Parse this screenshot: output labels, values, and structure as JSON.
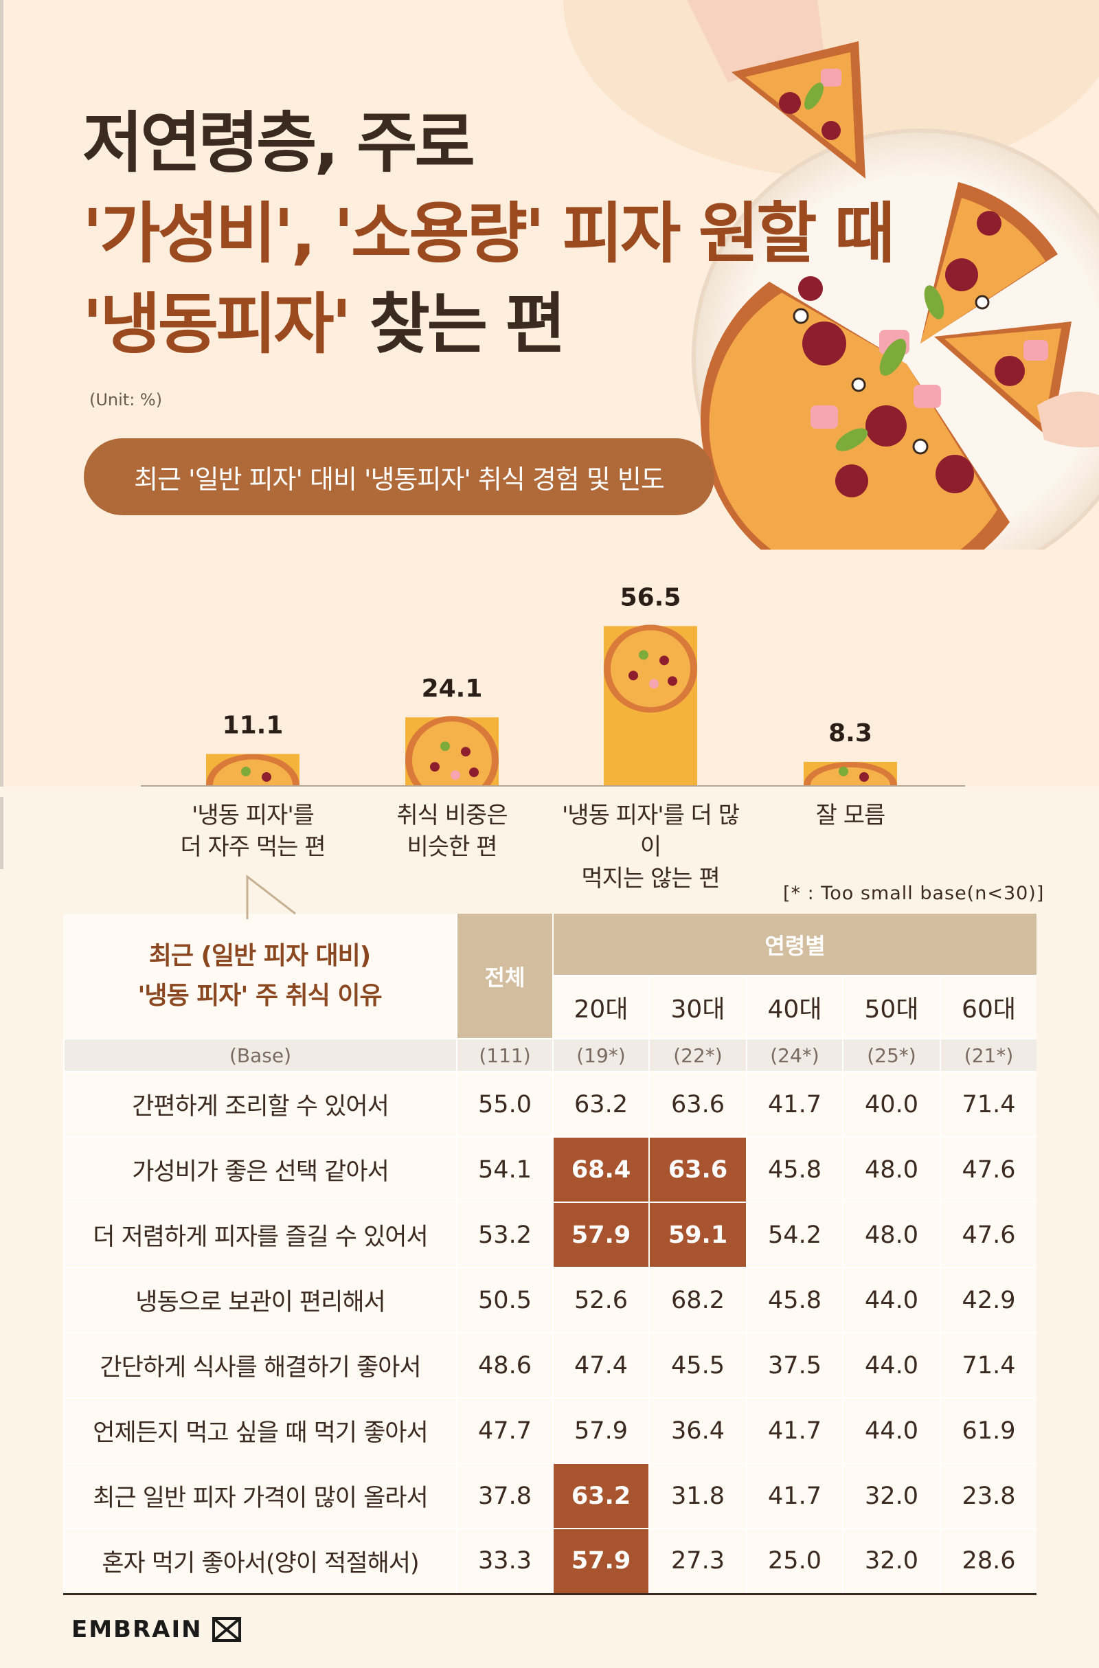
{
  "title": {
    "line1": "저연령층, 주로",
    "line2": "'가성비', '소용량' 피자 원할 때",
    "line3_accent": "'냉동피자'",
    "line3_rest": " 찾는 편"
  },
  "unit": "(Unit: %)",
  "section_pill": "최근 '일반 피자' 대비 '냉동피자' 취식 경험 및 빈도",
  "colors": {
    "accent": "#9a4a1e",
    "pill": "#b06a3a",
    "bar": "#f4b43c",
    "highlight": "#a8542e",
    "header": "#d2bd9f"
  },
  "chart_data": {
    "type": "bar",
    "categories": [
      "'냉동 피자'를\n더 자주 먹는 편",
      "취식 비중은\n비슷한 편",
      "'냉동 피자'를 더 많이\n먹지는 않는 편",
      "잘 모름"
    ],
    "values": [
      11.1,
      24.1,
      56.5,
      8.3
    ],
    "value_labels": [
      "11.1",
      "24.1",
      "56.5",
      "8.3"
    ],
    "title": "최근 '일반 피자' 대비 '냉동피자' 취식 경험 및 빈도",
    "unit": "%"
  },
  "small_base_note": "[* : Too small base(n<30)]",
  "table": {
    "callout_line1": "최근 (일반 피자 대비)",
    "callout_line2": "'냉동 피자' 주 취식 이유",
    "total_header": "전체",
    "age_group_header": "연령별",
    "age_columns": [
      "20대",
      "30대",
      "40대",
      "50대",
      "60대"
    ],
    "base_label": "(Base)",
    "base_values": [
      "(111)",
      "(19*)",
      "(22*)",
      "(24*)",
      "(25*)",
      "(21*)"
    ],
    "rows": [
      {
        "label": "간편하게 조리할 수 있어서",
        "values": [
          "55.0",
          "63.2",
          "63.6",
          "41.7",
          "40.0",
          "71.4"
        ],
        "highlight": []
      },
      {
        "label": "가성비가 좋은 선택 같아서",
        "values": [
          "54.1",
          "68.4",
          "63.6",
          "45.8",
          "48.0",
          "47.6"
        ],
        "highlight": [
          1,
          2
        ]
      },
      {
        "label": "더 저렴하게 피자를 즐길 수 있어서",
        "values": [
          "53.2",
          "57.9",
          "59.1",
          "54.2",
          "48.0",
          "47.6"
        ],
        "highlight": [
          1,
          2
        ]
      },
      {
        "label": "냉동으로 보관이 편리해서",
        "values": [
          "50.5",
          "52.6",
          "68.2",
          "45.8",
          "44.0",
          "42.9"
        ],
        "highlight": []
      },
      {
        "label": "간단하게 식사를 해결하기 좋아서",
        "values": [
          "48.6",
          "47.4",
          "45.5",
          "37.5",
          "44.0",
          "71.4"
        ],
        "highlight": []
      },
      {
        "label": "언제든지 먹고 싶을 때 먹기 좋아서",
        "values": [
          "47.7",
          "57.9",
          "36.4",
          "41.7",
          "44.0",
          "61.9"
        ],
        "highlight": []
      },
      {
        "label": "최근 일반 피자 가격이 많이 올라서",
        "values": [
          "37.8",
          "63.2",
          "31.8",
          "41.7",
          "32.0",
          "23.8"
        ],
        "highlight": [
          1
        ]
      },
      {
        "label": "혼자 먹기 좋아서(양이 적절해서)",
        "values": [
          "33.3",
          "57.9",
          "27.3",
          "25.0",
          "32.0",
          "28.6"
        ],
        "highlight": [
          1
        ]
      }
    ]
  },
  "logo": "EMBRAIN"
}
